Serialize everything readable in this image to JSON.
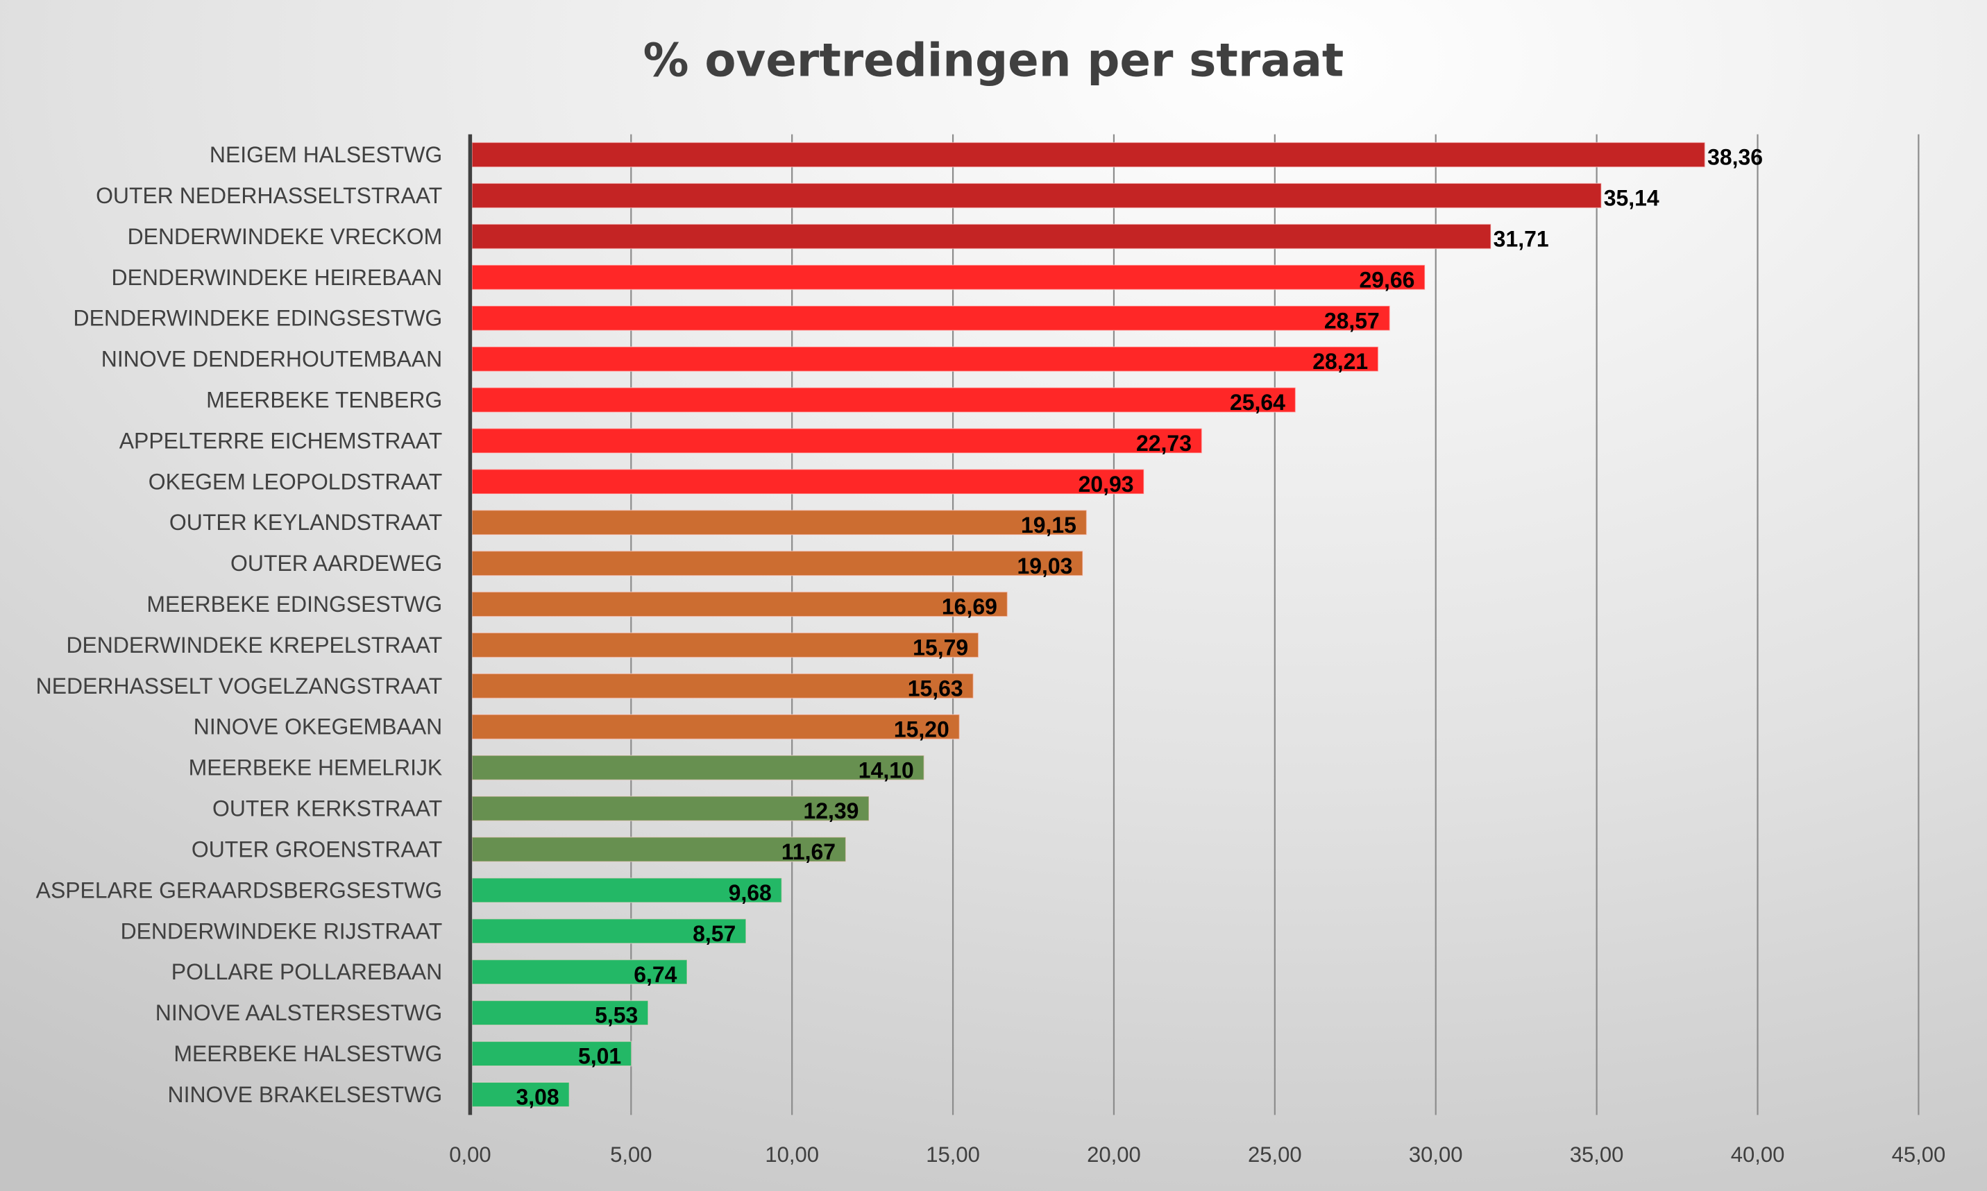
{
  "chart_data": {
    "type": "bar",
    "orientation": "horizontal",
    "title": "% overtredingen per straat",
    "xlabel": "",
    "ylabel": "",
    "xlim": [
      0,
      45
    ],
    "x_ticks": [
      "0,00",
      "5,00",
      "10,00",
      "15,00",
      "20,00",
      "25,00",
      "30,00",
      "35,00",
      "40,00",
      "45,00"
    ],
    "x_tick_values": [
      0,
      5,
      10,
      15,
      20,
      25,
      30,
      35,
      40,
      45
    ],
    "grid": "vertical",
    "legend": "none",
    "categories": [
      "NEIGEM HALSESTWG",
      "OUTER NEDERHASSELTSTRAAT",
      "DENDERWINDEKE VRECKOM",
      "DENDERWINDEKE HEIREBAAN",
      "DENDERWINDEKE EDINGSESTWG",
      "NINOVE DENDERHOUTEMBAAN",
      "MEERBEKE TENBERG",
      "APPELTERRE EICHEMSTRAAT",
      "OKEGEM LEOPOLDSTRAAT",
      "OUTER KEYLANDSTRAAT",
      "OUTER AARDEWEG",
      "MEERBEKE EDINGSESTWG",
      "DENDERWINDEKE KREPELSTRAAT",
      "NEDERHASSELT VOGELZANGSTRAAT",
      "NINOVE OKEGEMBAAN",
      "MEERBEKE HEMELRIJK",
      "OUTER KERKSTRAAT",
      "OUTER GROENSTRAAT",
      "ASPELARE GERAARDSBERGSESTWG",
      "DENDERWINDEKE RIJSTRAAT",
      "POLLARE POLLAREBAAN",
      "NINOVE AALSTERSESTWG",
      "MEERBEKE HALSESTWG",
      "NINOVE BRAKELSESTWG"
    ],
    "values": [
      38.36,
      35.14,
      31.71,
      29.66,
      28.57,
      28.21,
      25.64,
      22.73,
      20.93,
      19.15,
      19.03,
      16.69,
      15.79,
      15.63,
      15.2,
      14.1,
      12.39,
      11.67,
      9.68,
      8.57,
      6.74,
      5.53,
      5.01,
      3.08
    ],
    "value_labels": [
      "38,36",
      "35,14",
      "31,71",
      "29,66",
      "28,57",
      "28,21",
      "25,64",
      "22,73",
      "20,93",
      "19,15",
      "19,03",
      "16,69",
      "15,79",
      "15,63",
      "15,20",
      "14,10",
      "12,39",
      "11,67",
      "9,68",
      "8,57",
      "6,74",
      "5,53",
      "5,01",
      "3,08"
    ],
    "label_position": [
      "outside",
      "outside",
      "outside",
      "inside",
      "inside",
      "inside",
      "inside",
      "inside",
      "inside",
      "inside",
      "inside",
      "inside",
      "inside",
      "inside",
      "inside",
      "inside",
      "inside",
      "inside",
      "inside",
      "inside",
      "inside",
      "inside",
      "inside",
      "inside"
    ],
    "color_groups": [
      "dark-red",
      "dark-red",
      "dark-red",
      "red",
      "red",
      "red",
      "red",
      "red",
      "red",
      "orange",
      "orange",
      "orange",
      "orange",
      "orange",
      "orange",
      "olive-green",
      "olive-green",
      "olive-green",
      "green",
      "green",
      "green",
      "green",
      "green",
      "green"
    ],
    "colors": {
      "dark-red": "#c42424",
      "red": "#ff2727",
      "orange": "#cc6d31",
      "olive-green": "#679050",
      "green": "#23b866"
    }
  }
}
